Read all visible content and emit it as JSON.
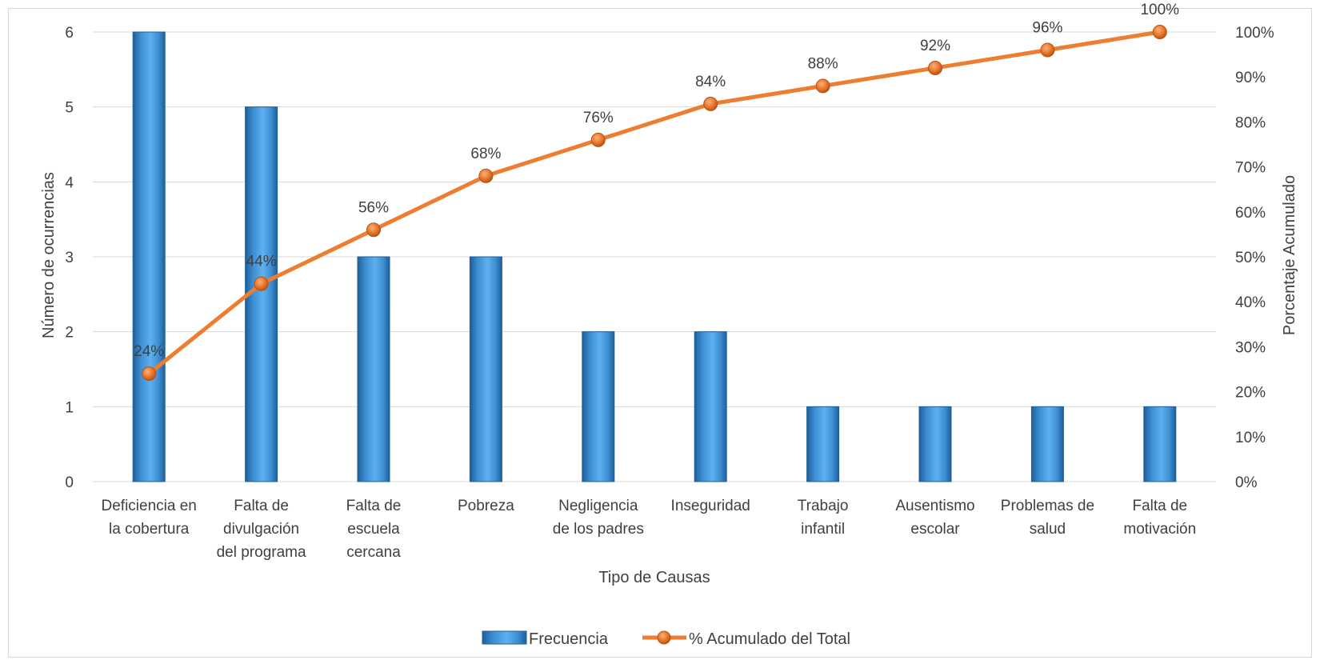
{
  "chart_data": {
    "type": "bar+line",
    "categories": [
      [
        "Deficiencia en",
        "la cobertura"
      ],
      [
        "Falta de",
        "divulgación",
        "del programa"
      ],
      [
        "Falta de",
        "escuela",
        "cercana"
      ],
      [
        "Pobreza"
      ],
      [
        "Negligencia",
        "de los padres"
      ],
      [
        "Inseguridad"
      ],
      [
        "Trabajo",
        "infantil"
      ],
      [
        "Ausentismo",
        "escolar"
      ],
      [
        "Problemas de",
        "salud"
      ],
      [
        "Falta de",
        "motivación"
      ]
    ],
    "series": [
      {
        "name": "Frecuencia",
        "type": "bar",
        "axis": "left",
        "values": [
          6,
          5,
          3,
          3,
          2,
          2,
          1,
          1,
          1,
          1
        ]
      },
      {
        "name": "% Acumulado del Total",
        "type": "line",
        "axis": "right",
        "values": [
          24,
          44,
          56,
          68,
          76,
          84,
          88,
          92,
          96,
          100
        ],
        "labels": [
          "24%",
          "44%",
          "56%",
          "68%",
          "76%",
          "84%",
          "88%",
          "92%",
          "96%",
          "100%"
        ]
      }
    ],
    "xlabel": "Tipo de Causas",
    "ylabel": "Número de  ocurrencias",
    "y2label": "Porcentaje Acumulado",
    "ylim": [
      0,
      6
    ],
    "yticks": [
      "0",
      "1",
      "2",
      "3",
      "4",
      "5",
      "6"
    ],
    "y2lim": [
      0,
      100
    ],
    "y2ticks": [
      "0%",
      "10%",
      "20%",
      "30%",
      "40%",
      "50%",
      "60%",
      "70%",
      "80%",
      "90%",
      "100%"
    ],
    "grid": true,
    "legend_position": "bottom",
    "colors": {
      "bar": "#4a9ee0",
      "bar_dark": "#1f5f99",
      "line": "#ed7d31",
      "marker": "#e8762b",
      "grid": "#d9d9d9",
      "text": "#404040"
    }
  }
}
